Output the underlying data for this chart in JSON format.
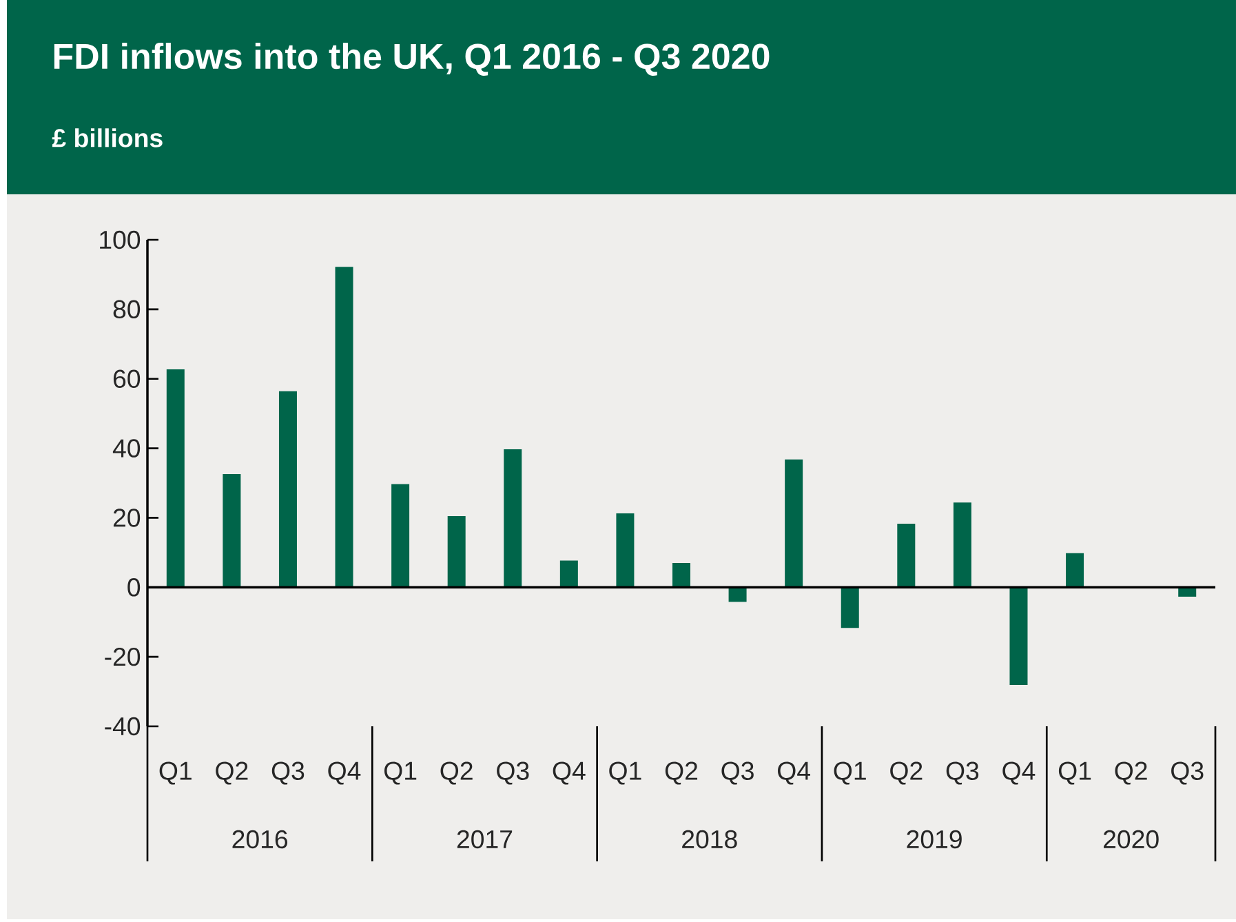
{
  "chart_data": {
    "type": "bar",
    "title": "FDI inflows into the UK, Q1 2016 - Q3 2020",
    "subtitle": "£ billions",
    "categories": [
      "Q1",
      "Q2",
      "Q3",
      "Q4",
      "Q1",
      "Q2",
      "Q3",
      "Q4",
      "Q1",
      "Q2",
      "Q3",
      "Q4",
      "Q1",
      "Q2",
      "Q3",
      "Q4",
      "Q1",
      "Q2",
      "Q3"
    ],
    "values": [
      62.7,
      32.6,
      56.4,
      92.2,
      29.7,
      20.5,
      39.7,
      7.7,
      21.3,
      7.0,
      -4.2,
      36.8,
      -11.7,
      18.3,
      24.4,
      -28.1,
      9.8,
      0.2,
      -2.7
    ],
    "color": "#00654a",
    "annotations": [
      "2016",
      "2017",
      "2018",
      "2019",
      "2020"
    ],
    "ylim": [
      -40,
      100
    ],
    "yticks": [
      -40,
      -20,
      0,
      20,
      40,
      60,
      80,
      100
    ]
  }
}
